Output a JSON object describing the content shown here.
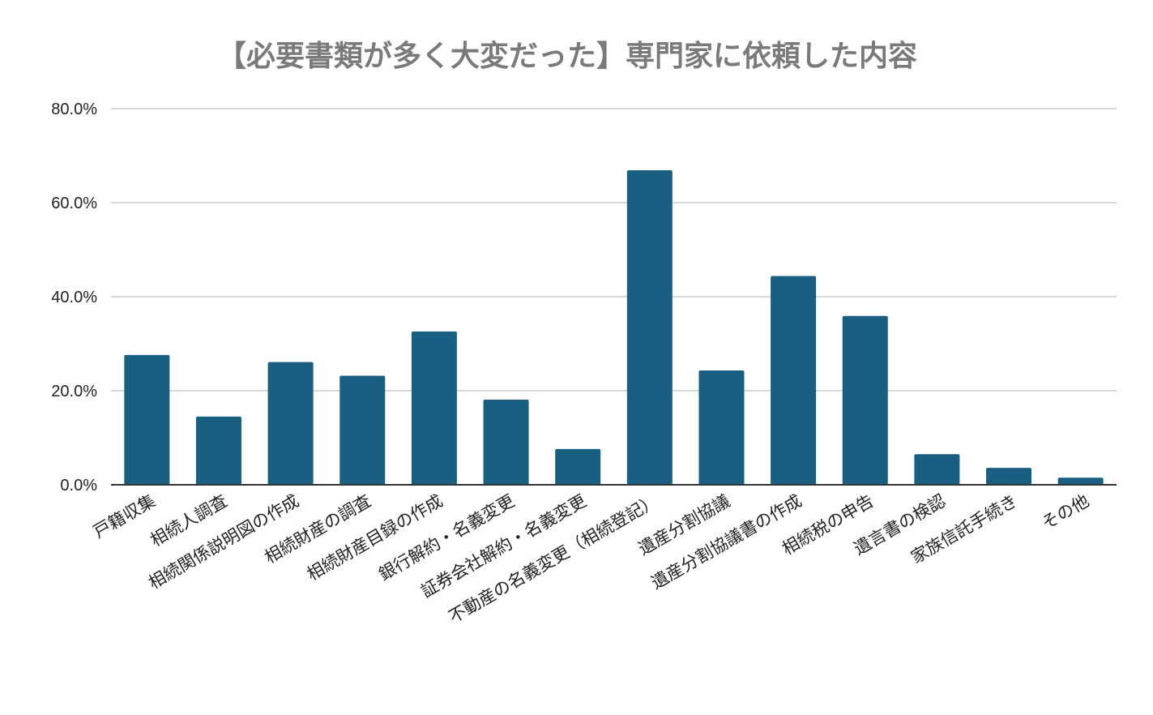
{
  "chart_data": {
    "type": "bar",
    "title": "【必要書類が多く大変だった】専門家に依頼した内容",
    "xlabel": "",
    "ylabel": "",
    "ylim": [
      0,
      80
    ],
    "yticks": [
      "0.0%",
      "20.0%",
      "40.0%",
      "60.0%",
      "80.0%"
    ],
    "grid": true,
    "bar_color": "#185f82",
    "categories": [
      "戸籍収集",
      "相続人調査",
      "相続関係説明図の作成",
      "相続財産の調査",
      "相続財産目録の作成",
      "銀行解約・名義変更",
      "証券会社解約・名義変更",
      "不動産の名義変更（相続登記）",
      "遺産分割協議",
      "遺産分割協議書の作成",
      "相続税の申告",
      "遺言書の検認",
      "家族信託手続き",
      "その他"
    ],
    "values": [
      27.6,
      14.5,
      26.1,
      23.2,
      32.6,
      18.1,
      7.6,
      66.9,
      24.3,
      44.4,
      35.9,
      6.5,
      3.6,
      1.5
    ]
  }
}
